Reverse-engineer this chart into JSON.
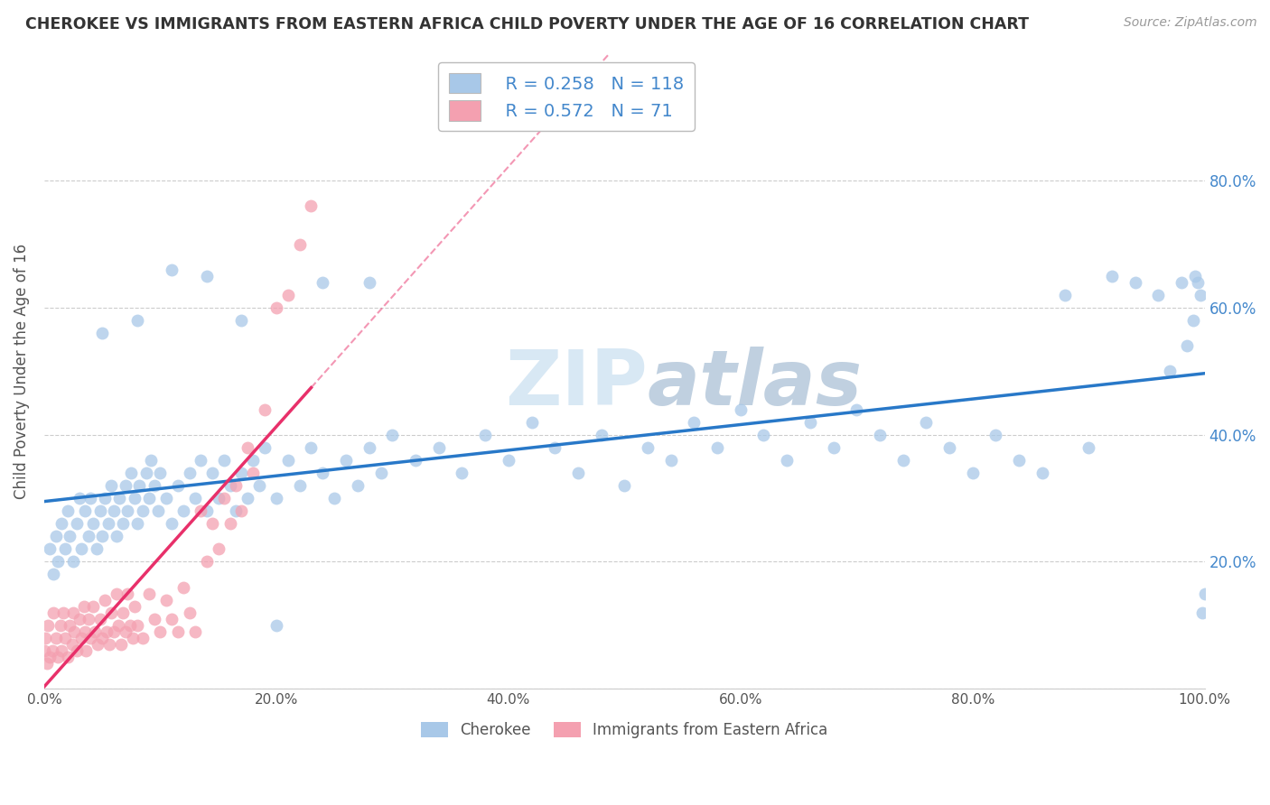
{
  "title": "CHEROKEE VS IMMIGRANTS FROM EASTERN AFRICA CHILD POVERTY UNDER THE AGE OF 16 CORRELATION CHART",
  "source": "Source: ZipAtlas.com",
  "ylabel": "Child Poverty Under the Age of 16",
  "xlim": [
    0.0,
    1.0
  ],
  "ylim": [
    0.0,
    1.0
  ],
  "cherokee_color": "#a8c8e8",
  "eastern_africa_color": "#f4a0b0",
  "cherokee_line_color": "#2878c8",
  "eastern_africa_line_color": "#e8306a",
  "tick_color": "#4488cc",
  "cherokee_R": 0.258,
  "cherokee_N": 118,
  "eastern_africa_R": 0.572,
  "eastern_africa_N": 71,
  "legend_cherokee": "Cherokee",
  "legend_eastern": "Immigrants from Eastern Africa",
  "background_color": "#ffffff",
  "grid_color": "#cccccc",
  "cherokee_x": [
    0.005,
    0.008,
    0.01,
    0.012,
    0.015,
    0.018,
    0.02,
    0.022,
    0.025,
    0.028,
    0.03,
    0.032,
    0.035,
    0.038,
    0.04,
    0.042,
    0.045,
    0.048,
    0.05,
    0.052,
    0.055,
    0.058,
    0.06,
    0.062,
    0.065,
    0.068,
    0.07,
    0.072,
    0.075,
    0.078,
    0.08,
    0.082,
    0.085,
    0.088,
    0.09,
    0.092,
    0.095,
    0.098,
    0.1,
    0.105,
    0.11,
    0.115,
    0.12,
    0.125,
    0.13,
    0.135,
    0.14,
    0.145,
    0.15,
    0.155,
    0.16,
    0.165,
    0.17,
    0.175,
    0.18,
    0.185,
    0.19,
    0.2,
    0.21,
    0.22,
    0.23,
    0.24,
    0.25,
    0.26,
    0.27,
    0.28,
    0.29,
    0.3,
    0.32,
    0.34,
    0.36,
    0.38,
    0.4,
    0.42,
    0.44,
    0.46,
    0.48,
    0.5,
    0.52,
    0.54,
    0.56,
    0.58,
    0.6,
    0.62,
    0.64,
    0.66,
    0.68,
    0.7,
    0.72,
    0.74,
    0.76,
    0.78,
    0.8,
    0.82,
    0.84,
    0.86,
    0.88,
    0.9,
    0.92,
    0.94,
    0.96,
    0.97,
    0.98,
    0.985,
    0.99,
    0.992,
    0.994,
    0.996,
    0.998,
    1.0,
    0.05,
    0.08,
    0.11,
    0.14,
    0.17,
    0.2,
    0.24,
    0.28
  ],
  "cherokee_y": [
    0.22,
    0.18,
    0.24,
    0.2,
    0.26,
    0.22,
    0.28,
    0.24,
    0.2,
    0.26,
    0.3,
    0.22,
    0.28,
    0.24,
    0.3,
    0.26,
    0.22,
    0.28,
    0.24,
    0.3,
    0.26,
    0.32,
    0.28,
    0.24,
    0.3,
    0.26,
    0.32,
    0.28,
    0.34,
    0.3,
    0.26,
    0.32,
    0.28,
    0.34,
    0.3,
    0.36,
    0.32,
    0.28,
    0.34,
    0.3,
    0.26,
    0.32,
    0.28,
    0.34,
    0.3,
    0.36,
    0.28,
    0.34,
    0.3,
    0.36,
    0.32,
    0.28,
    0.34,
    0.3,
    0.36,
    0.32,
    0.38,
    0.3,
    0.36,
    0.32,
    0.38,
    0.34,
    0.3,
    0.36,
    0.32,
    0.38,
    0.34,
    0.4,
    0.36,
    0.38,
    0.34,
    0.4,
    0.36,
    0.42,
    0.38,
    0.34,
    0.4,
    0.32,
    0.38,
    0.36,
    0.42,
    0.38,
    0.44,
    0.4,
    0.36,
    0.42,
    0.38,
    0.44,
    0.4,
    0.36,
    0.42,
    0.38,
    0.34,
    0.4,
    0.36,
    0.34,
    0.62,
    0.38,
    0.65,
    0.64,
    0.62,
    0.5,
    0.64,
    0.54,
    0.58,
    0.65,
    0.64,
    0.62,
    0.12,
    0.15,
    0.56,
    0.58,
    0.66,
    0.65,
    0.58,
    0.1,
    0.64,
    0.64
  ],
  "eastern_x": [
    0.0,
    0.001,
    0.002,
    0.003,
    0.005,
    0.007,
    0.008,
    0.01,
    0.012,
    0.014,
    0.015,
    0.016,
    0.018,
    0.02,
    0.022,
    0.024,
    0.025,
    0.026,
    0.028,
    0.03,
    0.032,
    0.034,
    0.035,
    0.036,
    0.038,
    0.04,
    0.042,
    0.044,
    0.046,
    0.048,
    0.05,
    0.052,
    0.054,
    0.056,
    0.058,
    0.06,
    0.062,
    0.064,
    0.066,
    0.068,
    0.07,
    0.072,
    0.074,
    0.076,
    0.078,
    0.08,
    0.085,
    0.09,
    0.095,
    0.1,
    0.105,
    0.11,
    0.115,
    0.12,
    0.125,
    0.13,
    0.135,
    0.14,
    0.145,
    0.15,
    0.155,
    0.16,
    0.165,
    0.17,
    0.175,
    0.18,
    0.19,
    0.2,
    0.21,
    0.22,
    0.23
  ],
  "eastern_y": [
    0.06,
    0.08,
    0.04,
    0.1,
    0.05,
    0.06,
    0.12,
    0.08,
    0.05,
    0.1,
    0.06,
    0.12,
    0.08,
    0.05,
    0.1,
    0.07,
    0.12,
    0.09,
    0.06,
    0.11,
    0.08,
    0.13,
    0.09,
    0.06,
    0.11,
    0.08,
    0.13,
    0.09,
    0.07,
    0.11,
    0.08,
    0.14,
    0.09,
    0.07,
    0.12,
    0.09,
    0.15,
    0.1,
    0.07,
    0.12,
    0.09,
    0.15,
    0.1,
    0.08,
    0.13,
    0.1,
    0.08,
    0.15,
    0.11,
    0.09,
    0.14,
    0.11,
    0.09,
    0.16,
    0.12,
    0.09,
    0.28,
    0.2,
    0.26,
    0.22,
    0.3,
    0.26,
    0.32,
    0.28,
    0.38,
    0.34,
    0.44,
    0.6,
    0.62,
    0.7,
    0.76
  ]
}
